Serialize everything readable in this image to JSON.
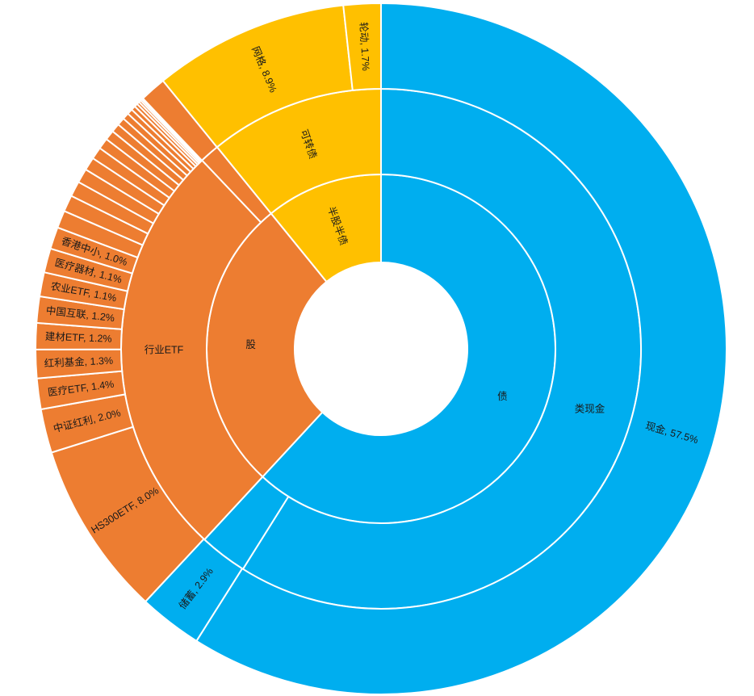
{
  "chart_data": {
    "type": "sunburst",
    "colors": {
      "债": "#00AEEF",
      "股": "#ED7D31",
      "半股半债": "#FFC000"
    },
    "rings": {
      "level1": [
        {
          "name": "债",
          "value": 60.4,
          "group": "债",
          "label": "债"
        },
        {
          "name": "股",
          "value": 26.6,
          "group": "股",
          "label": "股"
        },
        {
          "name": "半股半债",
          "value": 10.6,
          "group": "半股半债",
          "label": "半股半债"
        }
      ],
      "level2": [
        {
          "name": "类现金",
          "value": 57.5,
          "group": "债",
          "label": "类现金"
        },
        {
          "name": "储蓄",
          "value": 2.9,
          "group": "债",
          "label": ""
        },
        {
          "name": "行业ETF",
          "value": 25.4,
          "group": "股",
          "label": "行业ETF"
        },
        {
          "name": "股-其他",
          "value": 1.2,
          "group": "股",
          "label": ""
        },
        {
          "name": "可转债",
          "value": 10.6,
          "group": "半股半债",
          "label": "可转债"
        }
      ],
      "level3": [
        {
          "name": "现金",
          "value": 57.5,
          "group": "债",
          "label": "现金, 57.5%"
        },
        {
          "name": "储蓄",
          "value": 2.9,
          "group": "债",
          "label": "储蓄, 2.9%"
        },
        {
          "name": "HS300ETF",
          "value": 8.0,
          "group": "股",
          "label": "HS300ETF, 8.0%"
        },
        {
          "name": "中证红利",
          "value": 2.0,
          "group": "股",
          "label": "中证红利, 2.0%"
        },
        {
          "name": "医疗ETF",
          "value": 1.4,
          "group": "股",
          "label": "医疗ETF, 1.4%"
        },
        {
          "name": "红利基金",
          "value": 1.3,
          "group": "股",
          "label": "红利基金, 1.3%"
        },
        {
          "name": "建材ETF",
          "value": 1.2,
          "group": "股",
          "label": "建材ETF, 1.2%"
        },
        {
          "name": "中国互联",
          "value": 1.2,
          "group": "股",
          "label": "中国互联, 1.2%"
        },
        {
          "name": "农业ETF",
          "value": 1.1,
          "group": "股",
          "label": "农业ETF, 1.1%"
        },
        {
          "name": "医疗器材",
          "value": 1.1,
          "group": "股",
          "label": "医疗器材, 1.1%"
        },
        {
          "name": "香港中小",
          "value": 1.0,
          "group": "股",
          "label": "香港中小, 1.0%"
        },
        {
          "name": "s1",
          "value": 0.8,
          "group": "股",
          "label": ""
        },
        {
          "name": "s2",
          "value": 0.75,
          "group": "股",
          "label": ""
        },
        {
          "name": "s3",
          "value": 0.7,
          "group": "股",
          "label": ""
        },
        {
          "name": "s4",
          "value": 0.65,
          "group": "股",
          "label": ""
        },
        {
          "name": "s5",
          "value": 0.6,
          "group": "股",
          "label": ""
        },
        {
          "name": "s6",
          "value": 0.55,
          "group": "股",
          "label": ""
        },
        {
          "name": "s7",
          "value": 0.5,
          "group": "股",
          "label": ""
        },
        {
          "name": "s8",
          "value": 0.45,
          "group": "股",
          "label": ""
        },
        {
          "name": "s9",
          "value": 0.4,
          "group": "股",
          "label": ""
        },
        {
          "name": "s10",
          "value": 0.35,
          "group": "股",
          "label": ""
        },
        {
          "name": "s11",
          "value": 0.3,
          "group": "股",
          "label": ""
        },
        {
          "name": "s12",
          "value": 0.25,
          "group": "股",
          "label": ""
        },
        {
          "name": "s13",
          "value": 0.2,
          "group": "股",
          "label": ""
        },
        {
          "name": "s14",
          "value": 0.15,
          "group": "股",
          "label": ""
        },
        {
          "name": "s15",
          "value": 0.12,
          "group": "股",
          "label": ""
        },
        {
          "name": "s16",
          "value": 0.1,
          "group": "股",
          "label": ""
        },
        {
          "name": "s17",
          "value": 0.08,
          "group": "股",
          "label": ""
        },
        {
          "name": "s18",
          "value": 0.06,
          "group": "股",
          "label": ""
        },
        {
          "name": "股-其他",
          "value": 1.2,
          "group": "股",
          "label": ""
        },
        {
          "name": "网格",
          "value": 8.9,
          "group": "半股半债",
          "label": "网格, 8.9%"
        },
        {
          "name": "轮动",
          "value": 1.7,
          "group": "半股半债",
          "label": "轮动, 1.7%"
        }
      ]
    }
  }
}
